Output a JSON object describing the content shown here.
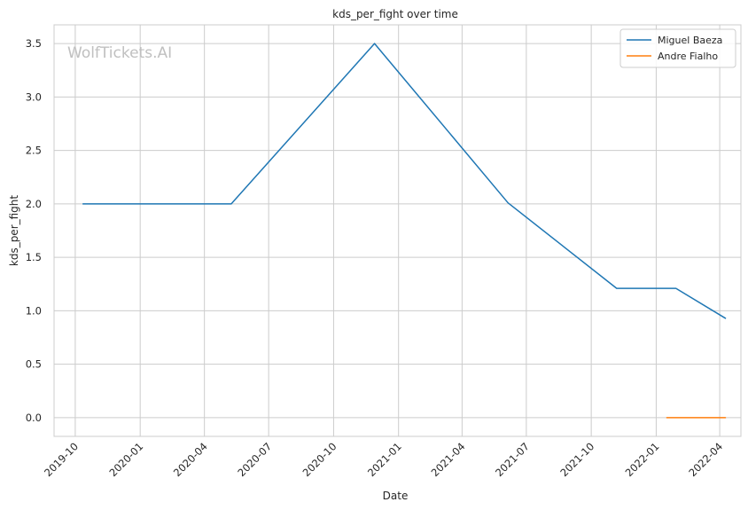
{
  "chart_data": {
    "type": "line",
    "title": "kds_per_fight over time",
    "xlabel": "Date",
    "ylabel": "kds_per_fight",
    "watermark": "WolfTickets.AI",
    "x_ticks": [
      "2019-10",
      "2020-01",
      "2020-04",
      "2020-07",
      "2020-10",
      "2021-01",
      "2021-04",
      "2021-07",
      "2021-10",
      "2022-01",
      "2022-04"
    ],
    "y_ticks": [
      "0.0",
      "0.5",
      "1.0",
      "1.5",
      "2.0",
      "2.5",
      "3.0",
      "3.5"
    ],
    "xlim": [
      "2019-09-01",
      "2022-05-01"
    ],
    "ylim": [
      -0.175,
      3.675
    ],
    "grid": true,
    "legend_position": "top-right",
    "series": [
      {
        "name": "Miguel Baeza",
        "color": "#1f77b4",
        "points": [
          {
            "x": "2019-10-12",
            "y": 2.0
          },
          {
            "x": "2020-05-09",
            "y": 2.0
          },
          {
            "x": "2020-11-28",
            "y": 3.5
          },
          {
            "x": "2021-06-05",
            "y": 2.01
          },
          {
            "x": "2021-11-06",
            "y": 1.21
          },
          {
            "x": "2022-01-29",
            "y": 1.21
          },
          {
            "x": "2022-04-09",
            "y": 0.93
          }
        ]
      },
      {
        "name": "Andre Fialho",
        "color": "#ff7f0e",
        "points": [
          {
            "x": "2022-01-16",
            "y": 0.0
          },
          {
            "x": "2022-04-09",
            "y": 0.0
          }
        ]
      }
    ]
  }
}
